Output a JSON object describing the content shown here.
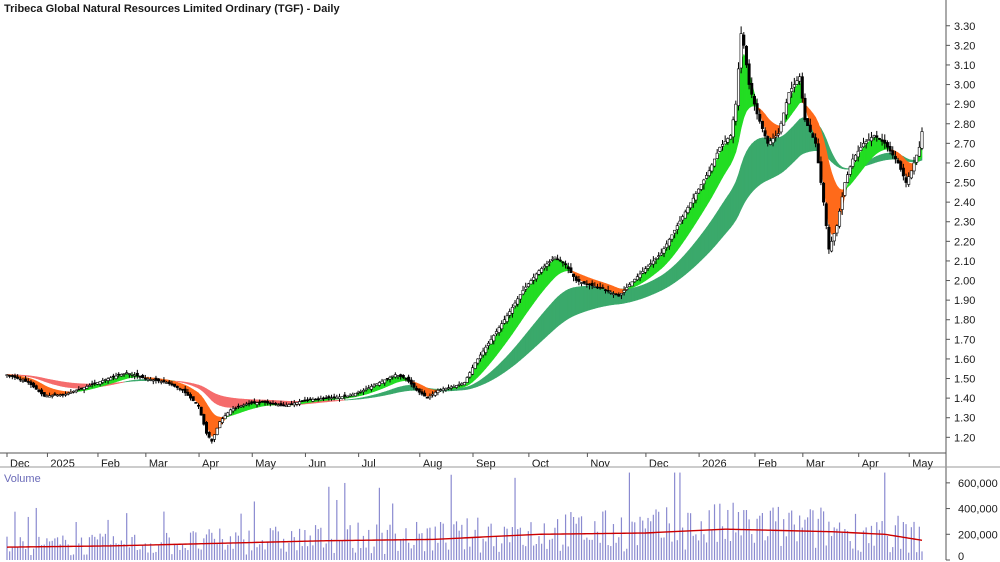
{
  "chart_data": {
    "type": "candlestick",
    "title": "Tribeca Global Natural Resources Limited Ordinary (TGF) - Daily",
    "ylim": [
      1.12,
      3.36
    ],
    "yticks": [
      "1.20",
      "1.30",
      "1.40",
      "1.50",
      "1.60",
      "1.70",
      "1.80",
      "1.90",
      "2.00",
      "2.10",
      "2.20",
      "2.30",
      "2.40",
      "2.50",
      "2.60",
      "2.70",
      "2.80",
      "2.90",
      "3.00",
      "3.10",
      "3.20",
      "3.30"
    ],
    "months": [
      "Dec",
      "2025",
      "Feb",
      "Mar",
      "Apr",
      "May",
      "Jun",
      "Jul",
      "Aug",
      "Sep",
      "Oct",
      "Nov",
      "Dec",
      "2026",
      "Feb",
      "Mar",
      "Apr",
      "May"
    ],
    "month_index": [
      0,
      15.2,
      34.2,
      52.2,
      72.2,
      92.2,
      112.2,
      132.2,
      155.2,
      175.2,
      196.2,
      218.2,
      240.2,
      260.2,
      281.2,
      299.2,
      320.2,
      339.2
    ],
    "n_days": 345,
    "price_keypoints": [
      [
        0,
        1.52
      ],
      [
        8,
        1.48
      ],
      [
        14,
        1.41
      ],
      [
        22,
        1.42
      ],
      [
        30,
        1.46
      ],
      [
        38,
        1.5
      ],
      [
        45,
        1.53
      ],
      [
        52,
        1.5
      ],
      [
        60,
        1.48
      ],
      [
        66,
        1.44
      ],
      [
        72,
        1.36
      ],
      [
        75,
        1.22
      ],
      [
        77,
        1.18
      ],
      [
        80,
        1.28
      ],
      [
        84,
        1.34
      ],
      [
        90,
        1.37
      ],
      [
        96,
        1.38
      ],
      [
        104,
        1.36
      ],
      [
        112,
        1.39
      ],
      [
        120,
        1.4
      ],
      [
        128,
        1.41
      ],
      [
        134,
        1.44
      ],
      [
        140,
        1.48
      ],
      [
        146,
        1.52
      ],
      [
        150,
        1.5
      ],
      [
        154,
        1.44
      ],
      [
        158,
        1.4
      ],
      [
        162,
        1.44
      ],
      [
        168,
        1.46
      ],
      [
        172,
        1.48
      ],
      [
        176,
        1.58
      ],
      [
        182,
        1.7
      ],
      [
        188,
        1.82
      ],
      [
        194,
        1.95
      ],
      [
        200,
        2.05
      ],
      [
        206,
        2.12
      ],
      [
        210,
        2.08
      ],
      [
        214,
        2.0
      ],
      [
        218,
        1.98
      ],
      [
        224,
        1.96
      ],
      [
        230,
        1.92
      ],
      [
        234,
        1.98
      ],
      [
        240,
        2.06
      ],
      [
        246,
        2.14
      ],
      [
        252,
        2.28
      ],
      [
        258,
        2.42
      ],
      [
        264,
        2.56
      ],
      [
        268,
        2.68
      ],
      [
        272,
        2.74
      ],
      [
        274,
        2.9
      ],
      [
        276,
        3.26
      ],
      [
        277,
        3.2
      ],
      [
        279,
        3.0
      ],
      [
        282,
        2.85
      ],
      [
        286,
        2.7
      ],
      [
        290,
        2.75
      ],
      [
        294,
        2.96
      ],
      [
        298,
        3.04
      ],
      [
        300,
        2.82
      ],
      [
        304,
        2.7
      ],
      [
        307,
        2.4
      ],
      [
        309,
        2.16
      ],
      [
        312,
        2.28
      ],
      [
        315,
        2.5
      ],
      [
        318,
        2.62
      ],
      [
        322,
        2.7
      ],
      [
        326,
        2.74
      ],
      [
        330,
        2.7
      ],
      [
        335,
        2.6
      ],
      [
        338,
        2.5
      ],
      [
        340,
        2.56
      ],
      [
        343,
        2.68
      ],
      [
        345,
        2.84
      ]
    ],
    "volume": {
      "label": "Volume",
      "ylim": [
        0,
        700000
      ],
      "yticks": [
        "600,000",
        "400,000",
        "200,000",
        "0"
      ],
      "ytick_values": [
        600000,
        400000,
        200000,
        0
      ],
      "ma_keypoints": [
        [
          0,
          100000
        ],
        [
          40,
          110000
        ],
        [
          80,
          130000
        ],
        [
          120,
          150000
        ],
        [
          160,
          160000
        ],
        [
          200,
          200000
        ],
        [
          240,
          210000
        ],
        [
          270,
          240000
        ],
        [
          290,
          230000
        ],
        [
          310,
          220000
        ],
        [
          330,
          200000
        ],
        [
          345,
          150000
        ]
      ]
    },
    "indicators": [
      "short-term moving average ribbon",
      "long-term moving average ribbon",
      "volume moving average"
    ],
    "colors": {
      "candle": "#000000",
      "short_up": "#22dd22",
      "short_down": "#ff6a1a",
      "long_up": "#3aa96b",
      "long_down": "#f56c6c",
      "long_down_faint": "#f7b2b2",
      "volume_bar": "#8a8ad0",
      "volume_ma": "#cc0000",
      "axis": "#555555",
      "grid": "#dddddd"
    }
  }
}
